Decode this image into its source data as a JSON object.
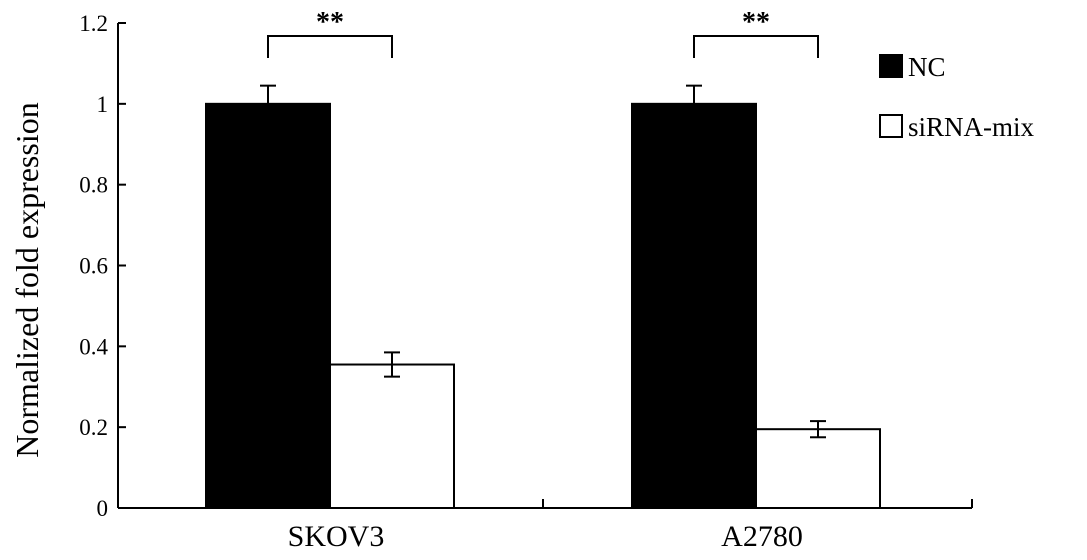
{
  "chart_data": {
    "type": "bar",
    "categories": [
      "SKOV3",
      "A2780"
    ],
    "series": [
      {
        "name": "NC",
        "values": [
          1.0,
          1.0
        ],
        "errors": [
          0.045,
          0.045
        ],
        "color": "#000000"
      },
      {
        "name": "siRNA-mix",
        "values": [
          0.355,
          0.195
        ],
        "errors": [
          0.03,
          0.02
        ],
        "color": "#ffffff"
      }
    ],
    "ylabel": "Normalized fold expression",
    "xlabel": "",
    "ylim": [
      0,
      1.2
    ],
    "yticks": [
      "0",
      "0.2",
      "0.4",
      "0.6",
      "0.8",
      "1",
      "1.2"
    ],
    "annotations": [
      {
        "category": "SKOV3",
        "text": "**"
      },
      {
        "category": "A2780",
        "text": "**"
      }
    ],
    "legend_position": "top-right",
    "grid": false
  }
}
